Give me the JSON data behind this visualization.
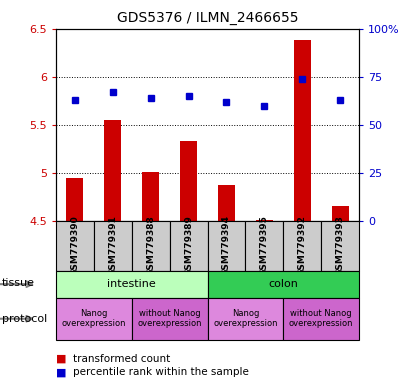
{
  "title": "GDS5376 / ILMN_2466655",
  "samples": [
    "GSM779390",
    "GSM779391",
    "GSM779388",
    "GSM779389",
    "GSM779394",
    "GSM779395",
    "GSM779392",
    "GSM779393"
  ],
  "bar_values": [
    4.95,
    5.55,
    5.01,
    5.33,
    4.87,
    4.51,
    6.38,
    4.65
  ],
  "dot_values": [
    63,
    67,
    64,
    65,
    62,
    60,
    74,
    63
  ],
  "ylim_left": [
    4.5,
    6.5
  ],
  "ylim_right": [
    0,
    100
  ],
  "yticks_left": [
    4.5,
    5.0,
    5.5,
    6.0,
    6.5
  ],
  "yticks_right": [
    0,
    25,
    50,
    75,
    100
  ],
  "ytick_labels_left": [
    "4.5",
    "5",
    "5.5",
    "6",
    "6.5"
  ],
  "ytick_labels_right": [
    "0",
    "25",
    "50",
    "75",
    "100%"
  ],
  "bar_color": "#cc0000",
  "dot_color": "#0000cc",
  "tissue_groups": [
    {
      "label": "intestine",
      "start": 0,
      "end": 4,
      "color": "#bbffbb"
    },
    {
      "label": "colon",
      "start": 4,
      "end": 8,
      "color": "#33cc55"
    }
  ],
  "protocol_groups": [
    {
      "label": "Nanog\noverexpression",
      "start": 0,
      "end": 2,
      "color": "#dd88dd"
    },
    {
      "label": "without Nanog\noverexpression",
      "start": 2,
      "end": 4,
      "color": "#cc66cc"
    },
    {
      "label": "Nanog\noverexpression",
      "start": 4,
      "end": 6,
      "color": "#dd88dd"
    },
    {
      "label": "without Nanog\noverexpression",
      "start": 6,
      "end": 8,
      "color": "#cc66cc"
    }
  ],
  "legend_items": [
    {
      "color": "#cc0000",
      "label": "transformed count"
    },
    {
      "color": "#0000cc",
      "label": "percentile rank within the sample"
    }
  ],
  "label_color_left": "#cc0000",
  "label_color_right": "#0000cc"
}
